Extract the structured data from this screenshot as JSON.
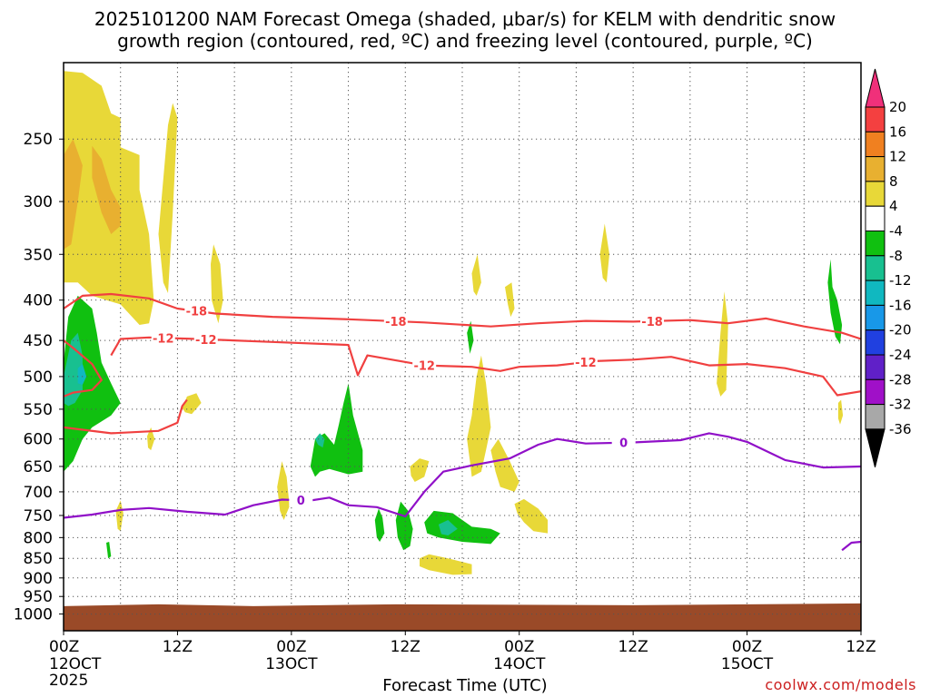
{
  "title_line1": "2025101200 NAM Forecast Omega (shaded, μbar/s) for KELM with dendritic snow",
  "title_line2": "growth region (contoured, red, ºC) and freezing level (contoured, purple, ºC)",
  "credit": "coolwx.com/models",
  "chart_data": {
    "type": "heatmap",
    "title": "2025101200 NAM Forecast Omega (shaded, μbar/s) for KELM with dendritic snow growth region (contoured, red, ºC) and freezing level (contoured, purple, ºC)",
    "xlabel": "Forecast Time (UTC)",
    "ylabel": "",
    "x_range_hours": [
      0,
      84
    ],
    "x_ticks": [
      {
        "hour": 0,
        "label": "00Z",
        "date": "12OCT",
        "year": "2025"
      },
      {
        "hour": 12,
        "label": "12Z",
        "date": "",
        "year": ""
      },
      {
        "hour": 24,
        "label": "00Z",
        "date": "13OCT",
        "year": ""
      },
      {
        "hour": 36,
        "label": "12Z",
        "date": "",
        "year": ""
      },
      {
        "hour": 48,
        "label": "00Z",
        "date": "14OCT",
        "year": ""
      },
      {
        "hour": 60,
        "label": "12Z",
        "date": "",
        "year": ""
      },
      {
        "hour": 72,
        "label": "00Z",
        "date": "15OCT",
        "year": ""
      },
      {
        "hour": 84,
        "label": "12Z",
        "date": "",
        "year": ""
      }
    ],
    "y_axis": "pressure (hPa), log scale, inverted",
    "y_ticks": [
      250,
      300,
      350,
      400,
      450,
      500,
      550,
      600,
      650,
      700,
      750,
      800,
      850,
      900,
      950,
      1000
    ],
    "y_range_hpa": [
      200,
      1050
    ],
    "grid": true,
    "colorbar": {
      "labels": [
        "20",
        "16",
        "12",
        "8",
        "4",
        "-4",
        "-8",
        "-12",
        "-16",
        "-20",
        "-24",
        "-28",
        "-32",
        "-36"
      ],
      "colors": [
        "#f0307a",
        "#f44040",
        "#f08020",
        "#e8b030",
        "#e8d838",
        "#ffffff",
        "#10c010",
        "#18c090",
        "#10b8c0",
        "#1898e8",
        "#2040e0",
        "#6020c8",
        "#a010c8",
        "#a8a8a8",
        "#000000"
      ]
    },
    "contours": [
      {
        "name": "-18",
        "color": "#f04040",
        "label_positions_hour": [
          14,
          35,
          62
        ],
        "points": [
          [
            0,
            410
          ],
          [
            2,
            395
          ],
          [
            5,
            393
          ],
          [
            9,
            398
          ],
          [
            12,
            410
          ],
          [
            16,
            416
          ],
          [
            22,
            420
          ],
          [
            30,
            423
          ],
          [
            38,
            427
          ],
          [
            45,
            432
          ],
          [
            50,
            428
          ],
          [
            55,
            425
          ],
          [
            60,
            426
          ],
          [
            66,
            424
          ],
          [
            70,
            428
          ],
          [
            74,
            422
          ],
          [
            78,
            432
          ],
          [
            82,
            440
          ],
          [
            84,
            448
          ]
        ]
      },
      {
        "name": "-12",
        "color": "#f04040",
        "label_positions_hour": [
          10.5,
          15,
          38,
          55
        ],
        "points": [
          [
            5,
            470
          ],
          [
            6,
            448
          ],
          [
            9,
            446
          ],
          [
            14,
            448
          ],
          [
            22,
            452
          ],
          [
            30,
            456
          ],
          [
            31,
            498
          ],
          [
            32,
            470
          ],
          [
            38,
            484
          ],
          [
            43,
            486
          ],
          [
            46,
            492
          ],
          [
            48,
            486
          ],
          [
            52,
            484
          ],
          [
            56,
            478
          ],
          [
            60,
            476
          ],
          [
            64,
            472
          ],
          [
            68,
            484
          ],
          [
            72,
            482
          ],
          [
            76,
            488
          ],
          [
            80,
            500
          ],
          [
            81.5,
            528
          ],
          [
            84,
            522
          ]
        ]
      },
      {
        "name": "-12b",
        "color": "#f04040",
        "label_positions_hour": [],
        "points": [
          [
            0,
            530
          ],
          [
            1,
            524
          ],
          [
            3,
            520
          ],
          [
            4,
            505
          ],
          [
            3,
            482
          ],
          [
            1,
            460
          ],
          [
            0,
            450
          ]
        ]
      },
      {
        "name": "-12c",
        "color": "#f04040",
        "label_positions_hour": [],
        "points": [
          [
            0,
            580
          ],
          [
            2,
            584
          ],
          [
            5,
            590
          ],
          [
            10,
            586
          ],
          [
            12,
            572
          ],
          [
            12.5,
            545
          ],
          [
            13,
            535
          ]
        ]
      },
      {
        "name": "0",
        "color": "#9010c8",
        "label_positions_hour": [
          25,
          59
        ],
        "points": [
          [
            0,
            755
          ],
          [
            3,
            748
          ],
          [
            6,
            738
          ],
          [
            9,
            734
          ],
          [
            13,
            742
          ],
          [
            17,
            748
          ],
          [
            20,
            728
          ],
          [
            23,
            716
          ],
          [
            26,
            718
          ],
          [
            28,
            712
          ],
          [
            30,
            728
          ],
          [
            33,
            732
          ],
          [
            36,
            752
          ],
          [
            38,
            700
          ],
          [
            40,
            660
          ],
          [
            43,
            648
          ],
          [
            47,
            635
          ],
          [
            50,
            610
          ],
          [
            52,
            600
          ],
          [
            55,
            608
          ],
          [
            60,
            606
          ],
          [
            65,
            602
          ],
          [
            68,
            590
          ],
          [
            70,
            596
          ],
          [
            72,
            605
          ],
          [
            76,
            638
          ],
          [
            80,
            652
          ],
          [
            84,
            650
          ]
        ]
      },
      {
        "name": "0b",
        "color": "#9010c8",
        "label_positions_hour": [],
        "points": [
          [
            82,
            830
          ],
          [
            83,
            812
          ],
          [
            84,
            810
          ]
        ]
      }
    ],
    "shaded_regions": [
      {
        "value_range": "4 to 8",
        "color": "#e8d838"
      },
      {
        "value_range": "8 to 12",
        "color": "#e8b030"
      },
      {
        "value_range": "-4 to -8",
        "color": "#10c010"
      },
      {
        "value_range": "-8 to -12",
        "color": "#18c090"
      },
      {
        "value_range": "-12 to -16",
        "color": "#10b8c0"
      }
    ],
    "terrain_below_hpa": 972
  }
}
